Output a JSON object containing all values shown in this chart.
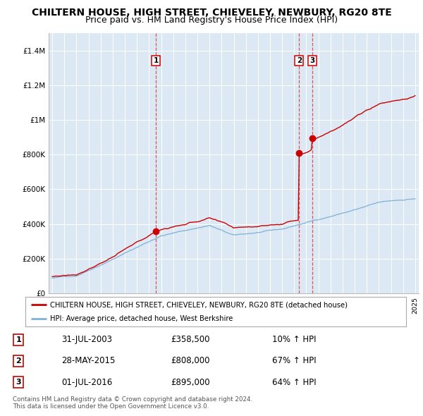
{
  "title": "CHILTERN HOUSE, HIGH STREET, CHIEVELEY, NEWBURY, RG20 8TE",
  "subtitle": "Price paid vs. HM Land Registry's House Price Index (HPI)",
  "title_fontsize": 10,
  "subtitle_fontsize": 9,
  "ylim": [
    0,
    1500000
  ],
  "yticks": [
    0,
    200000,
    400000,
    600000,
    800000,
    1000000,
    1200000,
    1400000
  ],
  "ytick_labels": [
    "£0",
    "£200K",
    "£400K",
    "£600K",
    "£800K",
    "£1M",
    "£1.2M",
    "£1.4M"
  ],
  "sale_year_floats": [
    2003.58,
    2015.41,
    2016.5
  ],
  "sale_prices": [
    358500,
    808000,
    895000
  ],
  "sale_labels": [
    "1",
    "2",
    "3"
  ],
  "red_line_color": "#cc0000",
  "blue_line_color": "#7eb0d5",
  "dashed_line_color": "#dd4444",
  "background_color": "#dce9f5",
  "legend_label_red": "CHILTERN HOUSE, HIGH STREET, CHIEVELEY, NEWBURY, RG20 8TE (detached house)",
  "legend_label_blue": "HPI: Average price, detached house, West Berkshire",
  "table_rows": [
    [
      "1",
      "31-JUL-2003",
      "£358,500",
      "10% ↑ HPI"
    ],
    [
      "2",
      "28-MAY-2015",
      "£808,000",
      "67% ↑ HPI"
    ],
    [
      "3",
      "01-JUL-2016",
      "£895,000",
      "64% ↑ HPI"
    ]
  ],
  "footer": "Contains HM Land Registry data © Crown copyright and database right 2024.\nThis data is licensed under the Open Government Licence v3.0.",
  "x_start_year": 1995,
  "x_end_year": 2025
}
